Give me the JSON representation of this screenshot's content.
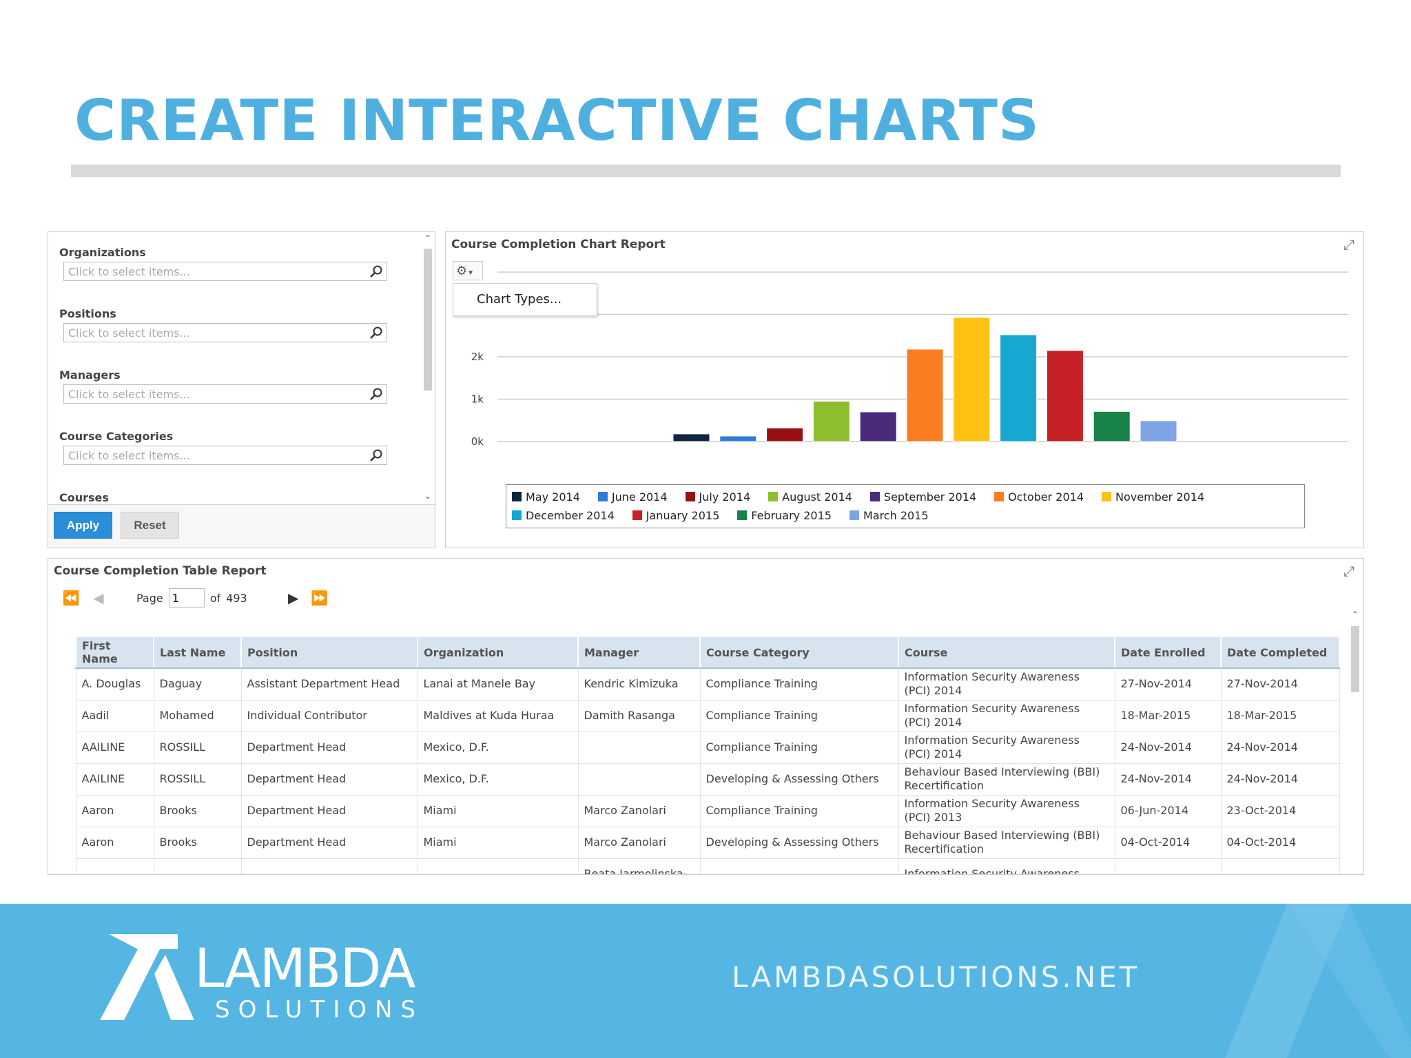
{
  "slide": {
    "title": "CREATE INTERACTIVE CHARTS"
  },
  "filters": {
    "fields": [
      {
        "label": "Organizations",
        "placeholder": "Click to select items..."
      },
      {
        "label": "Positions",
        "placeholder": "Click to select items..."
      },
      {
        "label": "Managers",
        "placeholder": "Click to select items..."
      },
      {
        "label": "Course Categories",
        "placeholder": "Click to select items..."
      }
    ],
    "partial_label": "Courses",
    "apply_label": "Apply",
    "reset_label": "Reset"
  },
  "chart_panel": {
    "title": "Course Completion Chart Report",
    "menu_item": "Chart Types...",
    "gear_icon": "gear-icon",
    "expand_icon": "expand-icon"
  },
  "chart_data": {
    "type": "bar",
    "title": "",
    "xlabel": "",
    "ylabel": "",
    "ylim": [
      0,
      3000
    ],
    "yticks": [
      "0k",
      "1k",
      "2k"
    ],
    "ytick_values": [
      0,
      1000,
      2000
    ],
    "grid": true,
    "legend_position": "bottom",
    "categories": [
      "May 2014",
      "June 2014",
      "July 2014",
      "August 2014",
      "September 2014",
      "October 2014",
      "November 2014",
      "December 2014",
      "January 2015",
      "February 2015",
      "March 2015"
    ],
    "values": [
      180,
      130,
      320,
      950,
      700,
      2180,
      2930,
      2520,
      2150,
      710,
      490
    ],
    "colors": [
      "#0f2540",
      "#2f7bd8",
      "#9a0f13",
      "#8ebe2e",
      "#4a2a7a",
      "#fb7d22",
      "#ffc112",
      "#17a8d1",
      "#c72025",
      "#178348",
      "#7ea4e6"
    ]
  },
  "table_panel": {
    "title": "Course Completion Table Report",
    "pager": {
      "page_label": "Page",
      "page_value": "1",
      "of_label": "of",
      "total_pages": "493"
    },
    "columns": [
      "First Name",
      "Last Name",
      "Position",
      "Organization",
      "Manager",
      "Course Category",
      "Course",
      "Date Enrolled",
      "Date Completed"
    ],
    "rows": [
      [
        "A. Douglas",
        "Daguay",
        "Assistant Department Head",
        "Lanai at Manele Bay",
        "Kendric Kimizuka",
        "Compliance Training",
        "Information Security Awareness (PCI) 2014",
        "27-Nov-2014",
        "27-Nov-2014"
      ],
      [
        "Aadil",
        "Mohamed",
        "Individual Contributor",
        "Maldives at Kuda Huraa",
        "Damith Rasanga",
        "Compliance Training",
        "Information Security Awareness (PCI) 2014",
        "18-Mar-2015",
        "18-Mar-2015"
      ],
      [
        "AAILINE",
        "ROSSILL",
        "Department Head",
        "Mexico, D.F.",
        "",
        "Compliance Training",
        "Information Security Awareness (PCI) 2014",
        "24-Nov-2014",
        "24-Nov-2014"
      ],
      [
        "AAILINE",
        "ROSSILL",
        "Department Head",
        "Mexico, D.F.",
        "",
        "Developing & Assessing Others",
        "Behaviour Based Interviewing (BBI) Recertification",
        "24-Nov-2014",
        "24-Nov-2014"
      ],
      [
        "Aaron",
        "Brooks",
        "Department Head",
        "Miami",
        "Marco Zanolari",
        "Compliance Training",
        "Information Security Awareness (PCI) 2013",
        "06-Jun-2014",
        "23-Oct-2014"
      ],
      [
        "Aaron",
        "Brooks",
        "Department Head",
        "Miami",
        "Marco Zanolari",
        "Developing & Assessing Others",
        "Behaviour Based Interviewing (BBI) Recertification",
        "04-Oct-2014",
        "04-Oct-2014"
      ],
      [
        "",
        "",
        "",
        "",
        "Beata Jarmolinska-",
        "",
        "Information Security Awareness",
        "",
        ""
      ]
    ]
  },
  "footer": {
    "logo_main": "LAMBDA",
    "logo_sub": "SOLUTIONS",
    "url": "LAMBDASOLUTIONS.NET"
  }
}
